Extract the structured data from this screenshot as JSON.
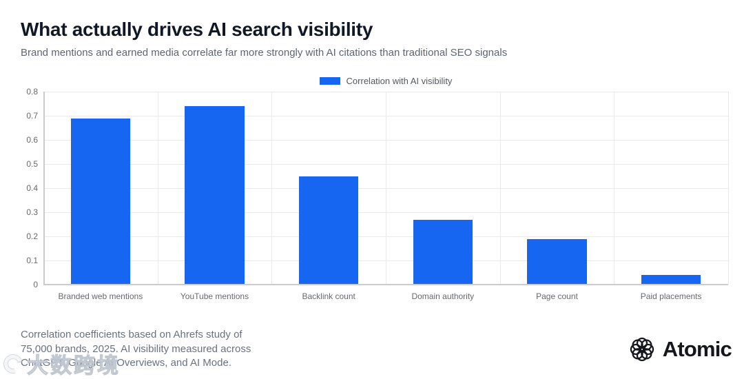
{
  "header": {
    "title": "What actually drives AI search visibility",
    "subtitle": "Brand mentions and earned media correlate far more strongly with AI citations than traditional SEO signals"
  },
  "chart_data": {
    "type": "bar",
    "title": "What actually drives AI search visibility",
    "legend": [
      {
        "label": "Correlation with AI visibility",
        "color": "#1766f2"
      }
    ],
    "legend_position": "top-center",
    "categories": [
      "Branded web mentions",
      "YouTube mentions",
      "Backlink count",
      "Domain authority",
      "Page count",
      "Paid placements"
    ],
    "values": [
      0.69,
      0.74,
      0.45,
      0.27,
      0.19,
      0.04
    ],
    "xlabel": "",
    "ylabel": "",
    "ylim": [
      0,
      0.8
    ],
    "yticks": [
      "0",
      "0.1",
      "0.2",
      "0.3",
      "0.4",
      "0.5",
      "0.6",
      "0.7",
      "0.8"
    ],
    "grid": true,
    "bar_color": "#1766f2"
  },
  "footer": {
    "note": "Correlation coefficients based on Ahrefs study of\n75,000 brands, 2025. AI visibility measured across\nChatGPT, Google AI Overviews, and AI Mode."
  },
  "branding": {
    "logo_text": "Atomic",
    "logo_icon": "flower-rosette-icon"
  },
  "watermark": {
    "text": "大数跨境",
    "icon": "swirl-c-icon"
  }
}
